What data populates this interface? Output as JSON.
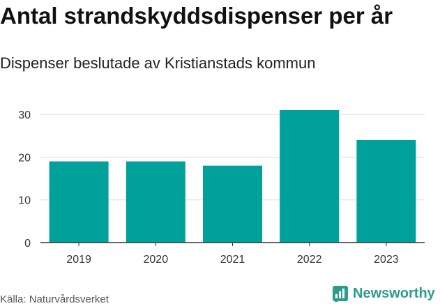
{
  "header": {
    "title": "Antal strandskyddsdispenser per år",
    "subtitle": "Dispenser beslutade av Kristianstads kommun"
  },
  "footer": {
    "source": "Källa: Naturvårdsverket",
    "brand": "Newsworthy"
  },
  "colors": {
    "bar": "#00a19a",
    "grid": "#dddddd",
    "brand": "#2a9d8f"
  },
  "chart_data": {
    "type": "bar",
    "title": "Antal strandskyddsdispenser per år",
    "subtitle": "Dispenser beslutade av Kristianstads kommun",
    "xlabel": "",
    "ylabel": "",
    "categories": [
      "2019",
      "2020",
      "2021",
      "2022",
      "2023"
    ],
    "values": [
      19,
      19,
      18,
      31,
      24
    ],
    "ylim": [
      0,
      31
    ],
    "yticks": [
      0,
      10,
      20,
      30
    ],
    "grid": true,
    "legend": "none"
  }
}
